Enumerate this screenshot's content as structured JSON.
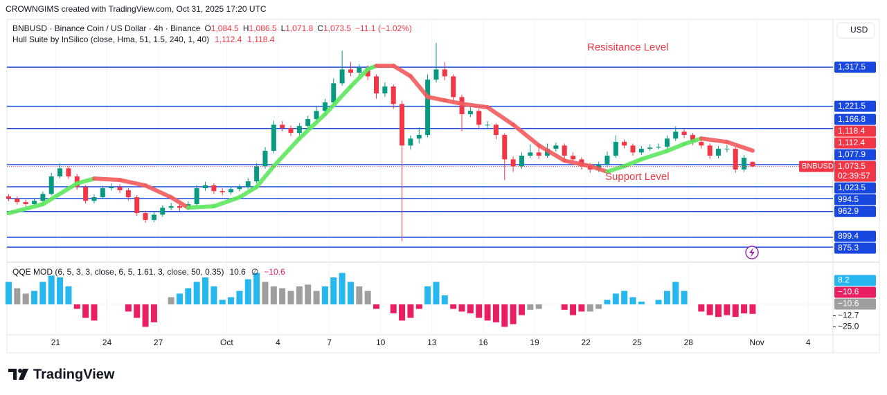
{
  "header": "CROWNGIMS created with TradingView.com, Oct 31, 2025 17:20 UTC",
  "chart_data": {
    "type": "candlestick",
    "title": "BNBUSD · Binance Coin / US Dollar · 4h · Binance",
    "ohlc_legend": [
      {
        "key": "O",
        "label": "1,084.5"
      },
      {
        "key": "H",
        "label": "1,086.5"
      },
      {
        "key": "L",
        "label": "1,071.8"
      },
      {
        "key": "C",
        "label": "1,073.5"
      }
    ],
    "change_label": "−11.1 (−1.02%)",
    "currency": "USD",
    "symbol_tag": "BNBUSD",
    "last_price_label": "1,073.5",
    "countdown": "02:39:57",
    "up_color": "#089981",
    "down_color": "#f23645",
    "open": [
      1000,
      994,
      986,
      981,
      989,
      1006,
      1049,
      1069,
      1049,
      1023,
      989,
      998,
      1020,
      1023,
      1015,
      998,
      959,
      942,
      955,
      972,
      976,
      972,
      981,
      1020,
      1027,
      1013,
      1010,
      1018,
      1023,
      1037,
      1074,
      1112,
      1176,
      1168,
      1156,
      1173,
      1190,
      1210,
      1231,
      1278,
      1312,
      1304,
      1316,
      1295,
      1253,
      1270,
      1227,
      1125,
      1142,
      1151,
      1287,
      1312,
      1295,
      1244,
      1202,
      1210,
      1176,
      1176,
      1151,
      1091,
      1074,
      1100,
      1108,
      1100,
      1117,
      1125,
      1100,
      1091,
      1074,
      1066,
      1078,
      1100,
      1134,
      1125,
      1108,
      1117,
      1120,
      1122,
      1142,
      1159,
      1151,
      1134,
      1125,
      1100,
      1117,
      1117,
      1066,
      1084.5
    ],
    "high": [
      1006,
      1000,
      992,
      995,
      1012,
      1058,
      1082,
      1074,
      1055,
      1028,
      1005,
      1026,
      1032,
      1030,
      1020,
      1003,
      965,
      962,
      978,
      984,
      982,
      988,
      1028,
      1036,
      1032,
      1020,
      1024,
      1030,
      1045,
      1082,
      1121,
      1186,
      1185,
      1174,
      1180,
      1198,
      1220,
      1240,
      1290,
      1358,
      1330,
      1325,
      1322,
      1300,
      1280,
      1275,
      1235,
      1150,
      1170,
      1300,
      1377,
      1330,
      1300,
      1250,
      1222,
      1215,
      1185,
      1180,
      1155,
      1098,
      1108,
      1128,
      1120,
      1130,
      1132,
      1130,
      1108,
      1096,
      1082,
      1085,
      1110,
      1150,
      1140,
      1130,
      1124,
      1128,
      1130,
      1150,
      1172,
      1165,
      1156,
      1140,
      1130,
      1124,
      1126,
      1122,
      1102,
      1086.5
    ],
    "low": [
      988,
      980,
      975,
      976,
      985,
      1002,
      1044,
      1043,
      1016,
      982,
      983,
      993,
      1014,
      1008,
      990,
      952,
      935,
      937,
      950,
      966,
      964,
      966,
      976,
      1014,
      1006,
      1003,
      1004,
      1012,
      1018,
      1032,
      1068,
      1106,
      1160,
      1148,
      1150,
      1166,
      1184,
      1204,
      1225,
      1272,
      1295,
      1296,
      1285,
      1240,
      1245,
      1215,
      890,
      1115,
      1130,
      1145,
      1280,
      1285,
      1235,
      1160,
      1195,
      1168,
      1165,
      1140,
      1040,
      1060,
      1068,
      1094,
      1092,
      1095,
      1110,
      1092,
      1084,
      1066,
      1058,
      1060,
      1072,
      1095,
      1118,
      1100,
      1102,
      1112,
      1115,
      1116,
      1136,
      1143,
      1126,
      1118,
      1092,
      1094,
      1108,
      1058,
      1060,
      1071.8
    ],
    "close": [
      994,
      986,
      981,
      989,
      1006,
      1049,
      1069,
      1049,
      1023,
      989,
      998,
      1020,
      1023,
      1015,
      998,
      959,
      942,
      955,
      972,
      976,
      972,
      981,
      1020,
      1027,
      1013,
      1010,
      1018,
      1023,
      1037,
      1074,
      1112,
      1176,
      1168,
      1156,
      1173,
      1190,
      1210,
      1231,
      1278,
      1312,
      1304,
      1316,
      1295,
      1253,
      1270,
      1227,
      1125,
      1142,
      1151,
      1287,
      1312,
      1295,
      1244,
      1202,
      1210,
      1176,
      1176,
      1151,
      1091,
      1074,
      1100,
      1108,
      1100,
      1117,
      1125,
      1100,
      1091,
      1074,
      1066,
      1078,
      1100,
      1134,
      1125,
      1108,
      1117,
      1120,
      1122,
      1142,
      1159,
      1151,
      1134,
      1125,
      1100,
      1117,
      1117,
      1066,
      1095,
      1073.5
    ],
    "xlim": [
      -0.2,
      96.4
    ],
    "xticks": [
      {
        "value": 5.5,
        "label": "21"
      },
      {
        "value": 11.5,
        "label": "24"
      },
      {
        "value": 17.5,
        "label": "27"
      },
      {
        "value": 25.5,
        "label": "Oct"
      },
      {
        "value": 31.5,
        "label": "4"
      },
      {
        "value": 37.5,
        "label": "7"
      },
      {
        "value": 43.5,
        "label": "10"
      },
      {
        "value": 49.5,
        "label": "13"
      },
      {
        "value": 55.5,
        "label": "16"
      },
      {
        "value": 61.5,
        "label": "19"
      },
      {
        "value": 67.5,
        "label": "22"
      },
      {
        "value": 73.5,
        "label": "25"
      },
      {
        "value": 79.5,
        "label": "28"
      },
      {
        "value": 87.5,
        "label": "Nov"
      },
      {
        "value": 93.5,
        "label": "4"
      }
    ],
    "ylim": [
      840,
      1435
    ],
    "level_color": "#1848e0",
    "levels": [
      {
        "value": 1317.5,
        "label": "1,317.5"
      },
      {
        "value": 1221.5,
        "label": "1,221.5"
      },
      {
        "value": 1166.8,
        "label": "1,166.8"
      },
      {
        "value": 1077.9,
        "label": "1,077.9"
      },
      {
        "value": 1023.5,
        "label": "1,023.5"
      },
      {
        "value": 994.5,
        "label": "994.5"
      },
      {
        "value": 962.9,
        "label": "962.9"
      },
      {
        "value": 899.4,
        "label": "899.4"
      },
      {
        "value": 875.3,
        "label": "875.3"
      }
    ],
    "annotations": [
      "Resisitance Level",
      "Support Level"
    ],
    "hull": {
      "name": "Hull Suite by InSilico (close, Hma, 51, 1.5, 240, 1, 40)",
      "rise_color": "#5ee85e",
      "fall_color": "#f25c5c",
      "x": [
        0,
        4,
        8,
        10,
        13,
        16,
        19,
        21,
        24,
        27,
        29,
        31,
        34,
        37,
        40,
        42,
        43,
        45,
        47,
        49,
        51,
        53,
        56,
        59,
        62,
        65,
        68,
        70,
        72,
        74,
        77,
        79,
        81,
        84,
        87
      ],
      "values": [
        958.6,
        980.8,
        1031.8,
        1043.7,
        1040.3,
        1026.7,
        997.8,
        972.3,
        975.7,
        997.8,
        1023.3,
        1074.3,
        1142.3,
        1201.9,
        1269.9,
        1312.4,
        1320.9,
        1320.9,
        1295.4,
        1244.4,
        1235.9,
        1227.4,
        1218.9,
        1176.3,
        1125.3,
        1087.9,
        1074.3,
        1060.7,
        1074.3,
        1091.3,
        1111.7,
        1128.7,
        1142.3,
        1133.8,
        1112.4
      ],
      "tags": [
        {
          "value": 1118.4,
          "label": "1,118.4"
        },
        {
          "value": 1112.4,
          "label": "1,112.4"
        }
      ]
    },
    "qqe": {
      "name": "QQE MOD (6, 5, 3, 3, close, 6, 5, 1.61, 3, close, 50, 0.35)",
      "legend_values": [
        "10.6",
        "∅",
        "−10.6"
      ],
      "ylim": [
        -33.1,
        46.2
      ],
      "yticks": [
        {
          "value": -12.7,
          "label": "−12.7"
        },
        {
          "value": -25,
          "label": "−25.0"
        }
      ],
      "tags": [
        {
          "value": 8.2,
          "label": "8.2",
          "color": "#26b6f0"
        },
        {
          "value": -10.6,
          "label": "−10.6",
          "color": "#e91e63"
        },
        {
          "value": -10.6,
          "label": "−10.6",
          "color": "#9e9e9e"
        }
      ],
      "values": [
        25,
        18,
        12,
        15,
        25,
        32,
        30,
        20,
        -5,
        -15,
        -18,
        0,
        0,
        0,
        -8,
        -15,
        -25,
        -20,
        0,
        8,
        12,
        18,
        25,
        30,
        20,
        5,
        8,
        15,
        28,
        35,
        25,
        20,
        18,
        15,
        20,
        22,
        15,
        20,
        30,
        35,
        25,
        20,
        15,
        -5,
        0,
        -10,
        -18,
        -15,
        -5,
        20,
        25,
        10,
        -5,
        -8,
        -10,
        -15,
        -18,
        -20,
        -25,
        -22,
        -12,
        -6,
        -5,
        0,
        0,
        -6,
        -12,
        -8,
        -8,
        -5,
        5,
        12,
        15,
        8,
        3,
        0,
        5,
        15,
        25,
        15,
        0,
        -8,
        -12,
        -14,
        -12,
        -14,
        -10,
        -10.6
      ],
      "colors": [
        "#26b6f0",
        "#9e9e9e",
        "#9e9e9e",
        "#26b6f0",
        "#26b6f0",
        "#26b6f0",
        "#26b6f0",
        "#26b6f0",
        "#e91e63",
        "#e91e63",
        "#e91e63",
        "#9e9e9e",
        "#9e9e9e",
        "#9e9e9e",
        "#e91e63",
        "#e91e63",
        "#e91e63",
        "#e91e63",
        "#9e9e9e",
        "#9e9e9e",
        "#26b6f0",
        "#26b6f0",
        "#26b6f0",
        "#26b6f0",
        "#26b6f0",
        "#26b6f0",
        "#26b6f0",
        "#26b6f0",
        "#26b6f0",
        "#26b6f0",
        "#9e9e9e",
        "#9e9e9e",
        "#9e9e9e",
        "#9e9e9e",
        "#9e9e9e",
        "#9e9e9e",
        "#9e9e9e",
        "#26b6f0",
        "#26b6f0",
        "#26b6f0",
        "#26b6f0",
        "#9e9e9e",
        "#9e9e9e",
        "#e91e63",
        "#9e9e9e",
        "#e91e63",
        "#e91e63",
        "#e91e63",
        "#e91e63",
        "#26b6f0",
        "#26b6f0",
        "#26b6f0",
        "#e91e63",
        "#e91e63",
        "#e91e63",
        "#e91e63",
        "#e91e63",
        "#e91e63",
        "#e91e63",
        "#e91e63",
        "#e91e63",
        "#9e9e9e",
        "#9e9e9e",
        "#9e9e9e",
        "#9e9e9e",
        "#e91e63",
        "#e91e63",
        "#e91e63",
        "#9e9e9e",
        "#9e9e9e",
        "#26b6f0",
        "#26b6f0",
        "#26b6f0",
        "#26b6f0",
        "#26b6f0",
        "#9e9e9e",
        "#26b6f0",
        "#26b6f0",
        "#26b6f0",
        "#26b6f0",
        "#9e9e9e",
        "#e91e63",
        "#e91e63",
        "#e91e63",
        "#e91e63",
        "#e91e63",
        "#e91e63",
        "#e91e63"
      ]
    }
  },
  "footer": "TradingView"
}
